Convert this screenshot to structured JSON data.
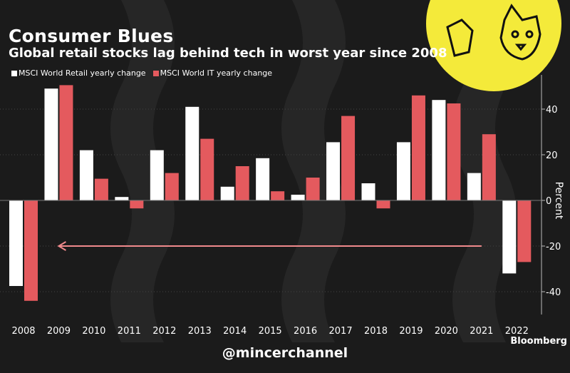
{
  "header": {
    "title": "Consumer Blues",
    "subtitle": "Global retail stocks lag behind tech in worst year since 2008"
  },
  "footer": {
    "brand": "Bloomberg",
    "watermark": "@mincerchannel"
  },
  "colors": {
    "retail": "#ffffff",
    "it": "#e45a5e",
    "arrow": "#f08a8c",
    "background": "#1b1b1b",
    "logo": "#f4ea3a"
  },
  "chart_data": {
    "type": "bar",
    "title": "Consumer Blues",
    "subtitle": "Global retail stocks lag behind tech in worst year since 2008",
    "ylabel": "Percent",
    "ylim": [
      -50,
      55
    ],
    "yticks": [
      -40,
      -20,
      0,
      20,
      40
    ],
    "grid": true,
    "legend": "top-left",
    "categories": [
      "2008",
      "2009",
      "2010",
      "2011",
      "2012",
      "2013",
      "2014",
      "2015",
      "2016",
      "2017",
      "2018",
      "2019",
      "2020",
      "2021",
      "2022"
    ],
    "series": [
      {
        "name": "MSCI World Retail yearly change",
        "color": "#ffffff",
        "values": [
          -37.5,
          49,
          22,
          1.5,
          22,
          41,
          6,
          18.5,
          2.5,
          25.5,
          7.5,
          25.5,
          44,
          12,
          -32
        ]
      },
      {
        "name": "MSCI World IT yearly change",
        "color": "#e45a5e",
        "values": [
          -44,
          50.5,
          9.5,
          -3.5,
          12,
          27,
          15,
          4,
          10,
          37,
          -3.5,
          46,
          42.5,
          29,
          -27
        ]
      }
    ],
    "annotations": [
      {
        "type": "arrow",
        "from": "2021",
        "to": "2009",
        "y": -20
      }
    ]
  }
}
